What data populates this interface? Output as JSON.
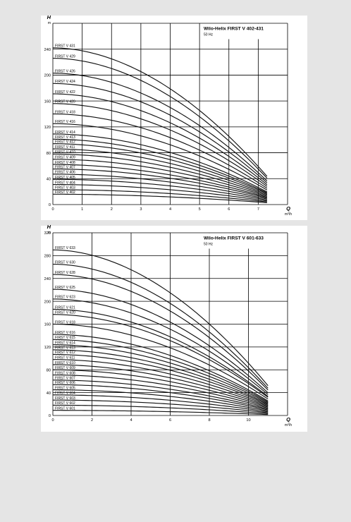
{
  "chart_data": [
    {
      "type": "line",
      "title": "Wilo-Helix FIRST V 402-431",
      "subtitle": "50 Hz",
      "ylabel_symbol": "H",
      "ylabel_unit": "m",
      "xlabel_symbol": "Q",
      "xlabel_unit": "m³/h",
      "xlim": [
        0,
        8
      ],
      "ylim": [
        0,
        280
      ],
      "x_ticks": [
        0,
        1,
        2,
        3,
        4,
        5,
        6,
        7
      ],
      "y_ticks": [
        0,
        40,
        80,
        120,
        160,
        200,
        240
      ],
      "grid": true,
      "x_max": 7.3,
      "series": [
        {
          "name": "FIRST V 431",
          "h0": 242
        },
        {
          "name": "FIRST V 429",
          "h0": 226
        },
        {
          "name": "FIRST V 426",
          "h0": 203
        },
        {
          "name": "FIRST V 424",
          "h0": 187
        },
        {
          "name": "FIRST V 422",
          "h0": 171
        },
        {
          "name": "FIRST V 420",
          "h0": 156
        },
        {
          "name": "FIRST V 418",
          "h0": 140
        },
        {
          "name": "FIRST V 416",
          "h0": 125
        },
        {
          "name": "FIRST V 414",
          "h0": 109
        },
        {
          "name": "FIRST V 413",
          "h0": 101
        },
        {
          "name": "FIRST V 412",
          "h0": 94
        },
        {
          "name": "FIRST V 411",
          "h0": 86
        },
        {
          "name": "FIRST V 410",
          "h0": 78
        },
        {
          "name": "FIRST V 409",
          "h0": 70
        },
        {
          "name": "FIRST V 408",
          "h0": 62
        },
        {
          "name": "FIRST V 407",
          "h0": 55
        },
        {
          "name": "FIRST V 406",
          "h0": 47
        },
        {
          "name": "FIRST V 405",
          "h0": 39
        },
        {
          "name": "FIRST V 404",
          "h0": 31
        },
        {
          "name": "FIRST V 403",
          "h0": 23
        },
        {
          "name": "FIRST V 402",
          "h0": 16
        }
      ]
    },
    {
      "type": "line",
      "title": "Wilo-Helix FIRST V 601-633",
      "subtitle": "50 Hz",
      "ylabel_symbol": "H",
      "ylabel_unit": "m",
      "xlabel_symbol": "Q",
      "xlabel_unit": "m³/h",
      "xlim": [
        0,
        12
      ],
      "ylim": [
        0,
        320
      ],
      "x_ticks": [
        0,
        2,
        4,
        6,
        8,
        10
      ],
      "y_ticks": [
        0,
        40,
        80,
        120,
        160,
        200,
        240,
        280,
        320
      ],
      "grid": true,
      "x_max": 11,
      "series": [
        {
          "name": "FIRST V 633",
          "h0": 290
        },
        {
          "name": "FIRST V 630",
          "h0": 265
        },
        {
          "name": "FIRST V 628",
          "h0": 247
        },
        {
          "name": "FIRST V 625",
          "h0": 221
        },
        {
          "name": "FIRST V 623",
          "h0": 204
        },
        {
          "name": "FIRST V 621",
          "h0": 186
        },
        {
          "name": "FIRST V 620",
          "h0": 177
        },
        {
          "name": "FIRST V 618",
          "h0": 160
        },
        {
          "name": "FIRST V 616",
          "h0": 142
        },
        {
          "name": "FIRST V 615",
          "h0": 133
        },
        {
          "name": "FIRST V 614",
          "h0": 124
        },
        {
          "name": "FIRST V 613",
          "h0": 115
        },
        {
          "name": "FIRST V 612",
          "h0": 107
        },
        {
          "name": "FIRST V 611",
          "h0": 98
        },
        {
          "name": "FIRST V 610",
          "h0": 89
        },
        {
          "name": "FIRST V 609",
          "h0": 80
        },
        {
          "name": "FIRST V 608",
          "h0": 71
        },
        {
          "name": "FIRST V 607",
          "h0": 62
        },
        {
          "name": "FIRST V 606",
          "h0": 54
        },
        {
          "name": "FIRST V 605",
          "h0": 45
        },
        {
          "name": "FIRST V 604",
          "h0": 36
        },
        {
          "name": "FIRST V 603",
          "h0": 27
        },
        {
          "name": "FIRST V 602",
          "h0": 18
        },
        {
          "name": "FIRST V 601",
          "h0": 9
        }
      ]
    }
  ]
}
